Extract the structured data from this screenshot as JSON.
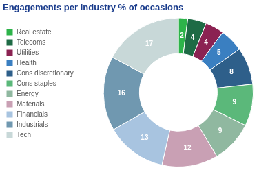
{
  "chart_data": {
    "type": "doughnut",
    "title": "Engagements per industry % of occasions",
    "categories": [
      "Real estate",
      "Telecoms",
      "Utilities",
      "Health",
      "Cons discretionary",
      "Cons staples",
      "Energy",
      "Materials",
      "Financials",
      "Industrials",
      "Tech"
    ],
    "values": [
      2,
      4,
      4,
      5,
      8,
      9,
      9,
      12,
      13,
      16,
      17
    ],
    "colors": [
      "#2db34a",
      "#1e6b45",
      "#8b2252",
      "#3a7fc1",
      "#2e5f8a",
      "#5bb87a",
      "#90b8a0",
      "#c9a0b4",
      "#a8c4e0",
      "#7098b0",
      "#c8d8d8"
    ],
    "legend": "left",
    "data_labels": true
  }
}
